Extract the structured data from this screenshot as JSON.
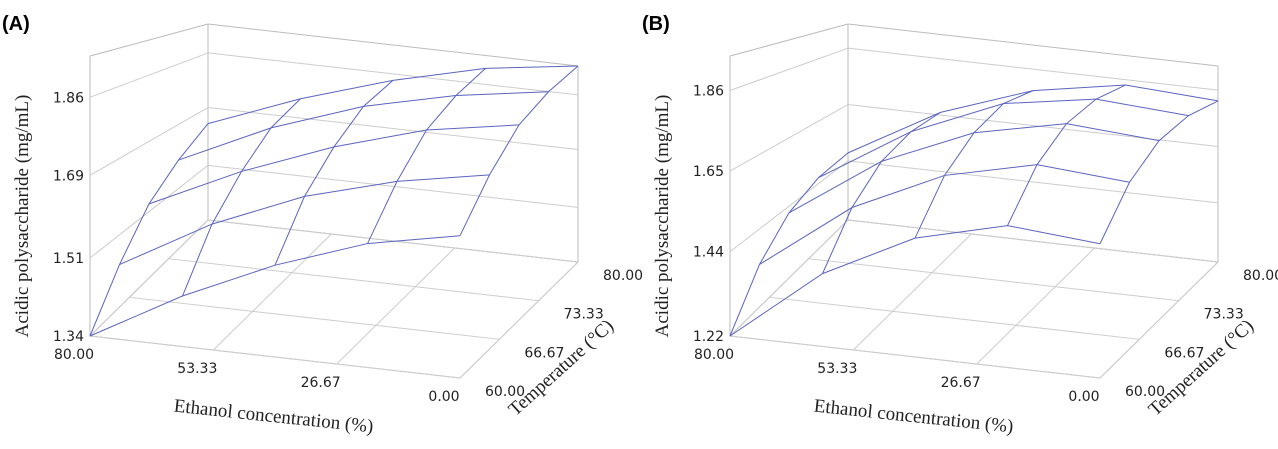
{
  "chart_data": [
    {
      "type": "surface",
      "title": "(A)",
      "xlabel": "Ethanol concentration (%)",
      "ylabel": "Temperature (°C)",
      "zlabel": "Acidic polysaccharide (mg/mL)",
      "x": [
        0,
        20,
        40,
        60,
        80
      ],
      "y": [
        60,
        65,
        70,
        75,
        80
      ],
      "z": [
        [
          1.65,
          1.75,
          1.84,
          1.9,
          1.95
        ],
        [
          1.61,
          1.71,
          1.8,
          1.86,
          1.91
        ],
        [
          1.54,
          1.65,
          1.73,
          1.8,
          1.84
        ],
        [
          1.45,
          1.56,
          1.64,
          1.71,
          1.75
        ],
        [
          1.34,
          1.44,
          1.53,
          1.59,
          1.64
        ]
      ],
      "xlim": [
        0,
        80
      ],
      "ylim": [
        60,
        80
      ],
      "zlim": [
        1.34,
        1.95
      ],
      "xticks": [
        {
          "value": 0,
          "label": "0.00"
        },
        26.67,
        53.33,
        {
          "value": 80,
          "label": "80.00"
        }
      ],
      "yticks": [
        {
          "value": 60,
          "label": "60.00"
        },
        66.67,
        73.33,
        {
          "value": 80,
          "label": "80.00"
        }
      ],
      "zticks": [
        1.34,
        1.51,
        1.69,
        1.86
      ],
      "color": "#5a64c0"
    },
    {
      "type": "surface",
      "title": "(B)",
      "xlabel": "Ethanol concentration (%)",
      "ylabel": "Temperature (°C)",
      "zlabel": "Acidic polysaccharide (mg/mL)",
      "x": [
        0,
        20,
        40,
        60,
        80
      ],
      "y": [
        60,
        65,
        70,
        75,
        80
      ],
      "z": [
        [
          1.57,
          1.69,
          1.77,
          1.81,
          1.82
        ],
        [
          1.59,
          1.71,
          1.79,
          1.83,
          1.84
        ],
        [
          1.53,
          1.65,
          1.73,
          1.78,
          1.78
        ],
        [
          1.41,
          1.53,
          1.61,
          1.65,
          1.66
        ],
        [
          1.22,
          1.34,
          1.42,
          1.46,
          1.47
        ]
      ],
      "xlim": [
        0,
        80
      ],
      "ylim": [
        60,
        80
      ],
      "zlim": [
        1.22,
        1.95
      ],
      "xticks": [
        {
          "value": 0,
          "label": "0.00"
        },
        26.67,
        53.33,
        {
          "value": 80,
          "label": "80.00"
        }
      ],
      "yticks": [
        {
          "value": 60,
          "label": "60.00"
        },
        66.67,
        73.33,
        {
          "value": 80,
          "label": "80.00"
        }
      ],
      "zticks": [
        1.22,
        1.44,
        1.65,
        1.86
      ],
      "color": "#5a64c0"
    }
  ]
}
